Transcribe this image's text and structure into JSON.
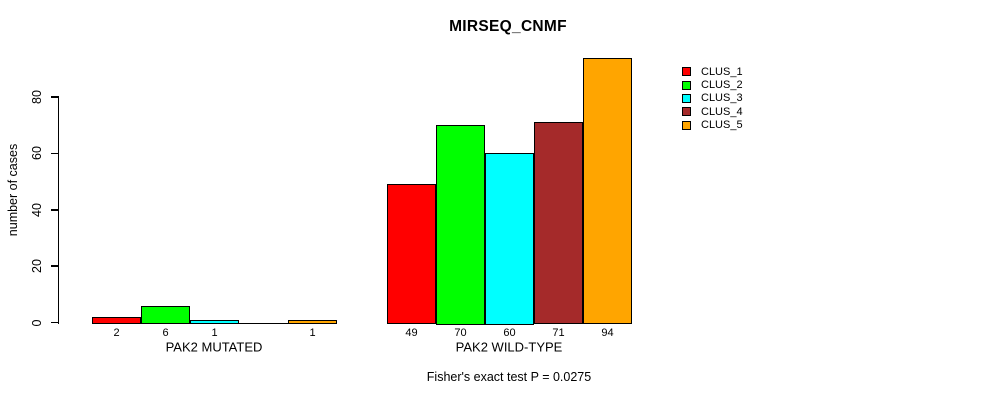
{
  "chart": {
    "title": "MIRSEQ_CNMF",
    "ylabel": "number of cases",
    "pvalue_note": "Fisher's exact test P = 0.0275"
  },
  "chart_data": {
    "type": "bar",
    "title": "MIRSEQ_CNMF",
    "xlabel": "",
    "ylabel": "number of cases",
    "categories": [
      "PAK2 MUTATED",
      "PAK2 WILD-TYPE"
    ],
    "series": [
      {
        "name": "CLUS_1",
        "color": "#ff0000",
        "values": [
          2,
          49
        ]
      },
      {
        "name": "CLUS_2",
        "color": "#00ff00",
        "values": [
          6,
          70
        ]
      },
      {
        "name": "CLUS_3",
        "color": "#00ffff",
        "values": [
          1,
          60
        ]
      },
      {
        "name": "CLUS_4",
        "color": "#a52a2a",
        "values": [
          0,
          71
        ]
      },
      {
        "name": "CLUS_5",
        "color": "#ffa500",
        "values": [
          1,
          94
        ]
      }
    ],
    "yticks": [
      0,
      20,
      40,
      60,
      80
    ],
    "ylim": [
      0,
      95
    ],
    "grid": false,
    "legend_position": "right",
    "bar_value_labels_shown": true,
    "zero_value_labels_hidden": true,
    "annotation": "Fisher's exact test P = 0.0275"
  },
  "legend": {
    "entries": [
      {
        "label": "CLUS_1",
        "color": "#ff0000"
      },
      {
        "label": "CLUS_2",
        "color": "#00ff00"
      },
      {
        "label": "CLUS_3",
        "color": "#00ffff"
      },
      {
        "label": "CLUS_4",
        "color": "#a52a2a"
      },
      {
        "label": "CLUS_5",
        "color": "#ffa500"
      }
    ]
  },
  "colors": {
    "axis": "#000000",
    "text": "#000000",
    "background": "#ffffff"
  }
}
